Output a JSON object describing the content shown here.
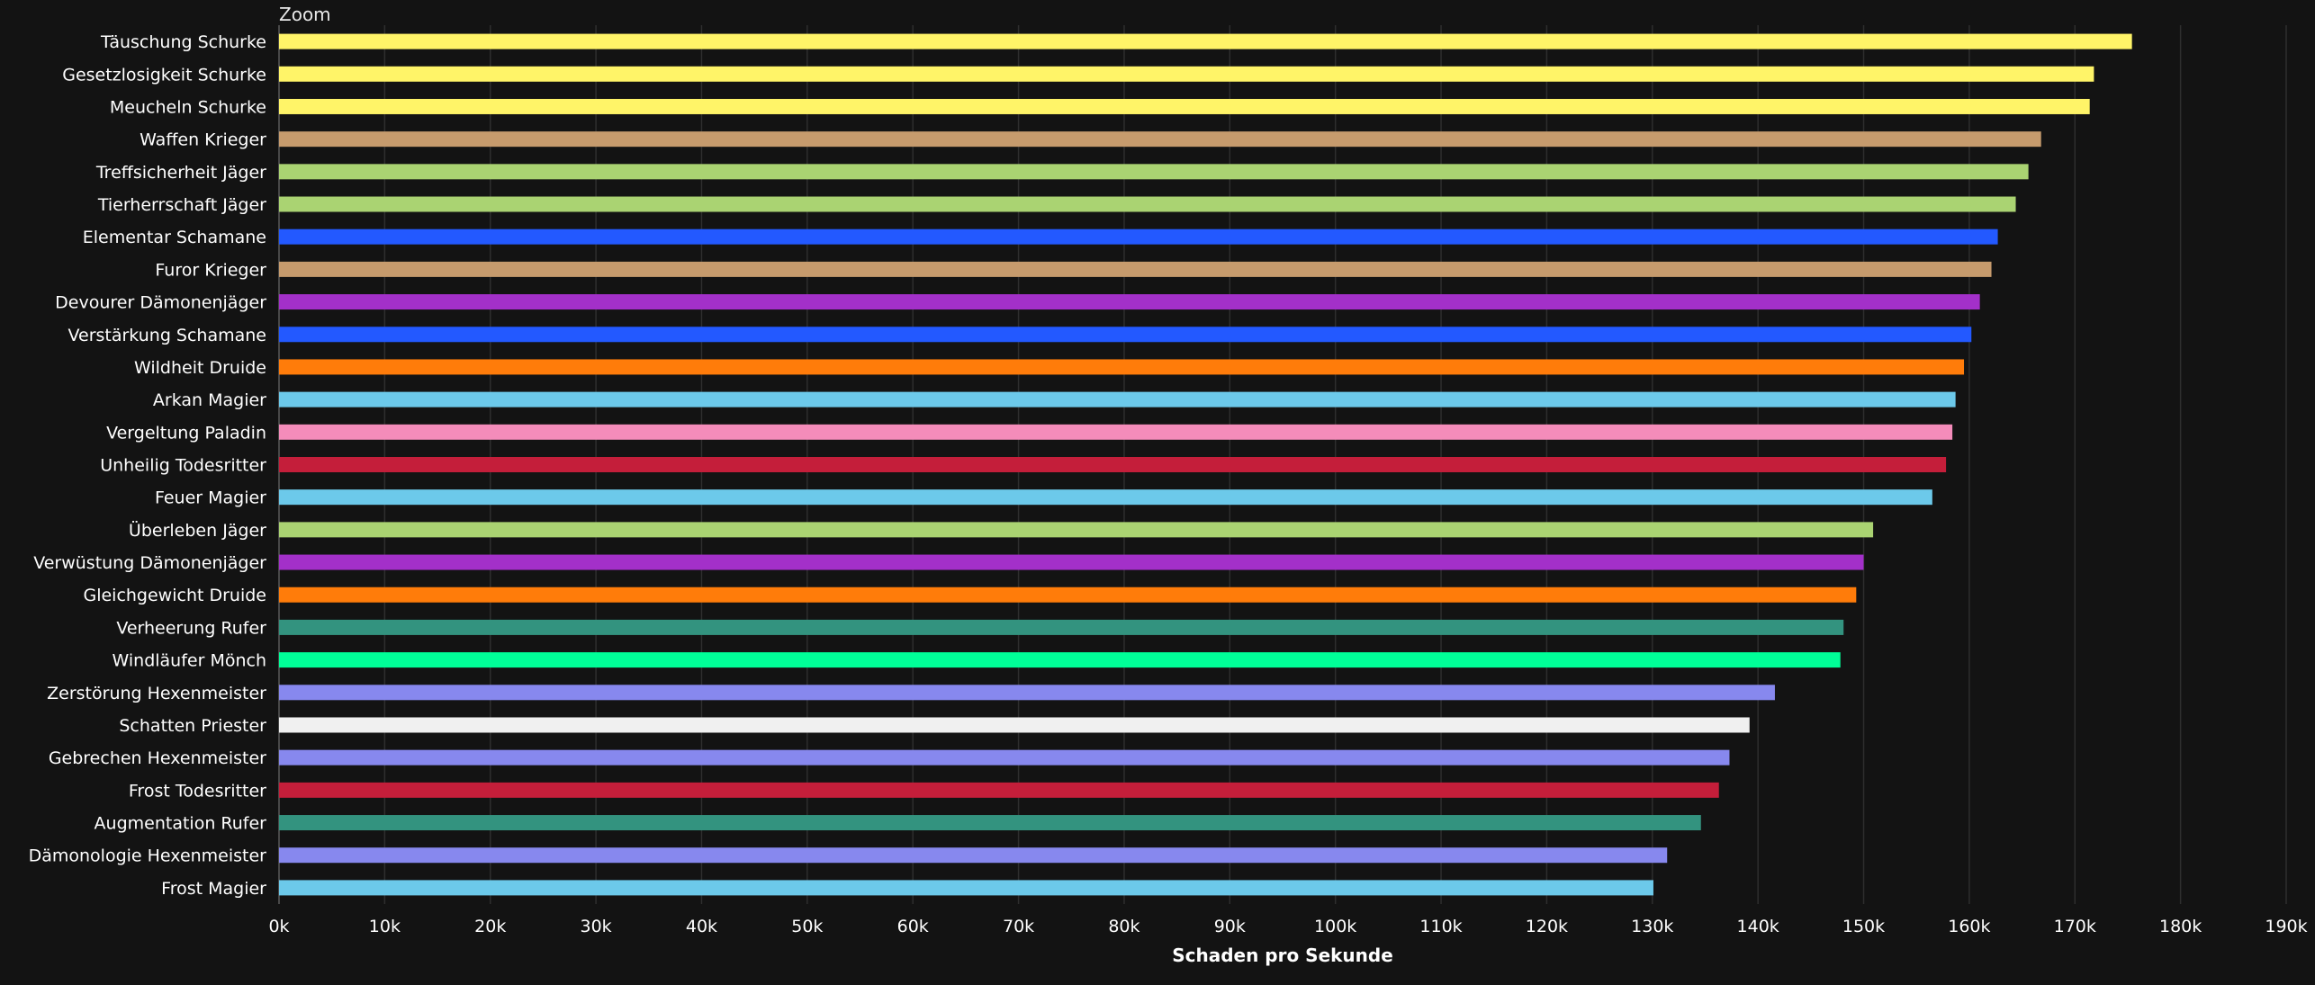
{
  "zoom_label": "Zoom",
  "colors": {
    "background": "#131313",
    "grid": "#2e2e2e",
    "text": "#ffffff"
  },
  "chart_data": {
    "type": "bar",
    "orientation": "horizontal",
    "xlabel": "Schaden pro Sekunde",
    "xlim": [
      0,
      190000
    ],
    "tick_step": 10000,
    "tick_labels": [
      "0k",
      "10k",
      "20k",
      "30k",
      "40k",
      "50k",
      "60k",
      "70k",
      "80k",
      "90k",
      "100k",
      "110k",
      "120k",
      "130k",
      "140k",
      "150k",
      "160k",
      "170k",
      "180k",
      "190k"
    ],
    "grid": true,
    "legend": "none",
    "categories": [
      "Täuschung Schurke",
      "Gesetzlosigkeit Schurke",
      "Meucheln Schurke",
      "Waffen Krieger",
      "Treffsicherheit Jäger",
      "Tierherrschaft Jäger",
      "Elementar Schamane",
      "Furor Krieger",
      "Devourer Dämonenjäger",
      "Verstärkung Schamane",
      "Wildheit Druide",
      "Arkan Magier",
      "Vergeltung Paladin",
      "Unheilig Todesritter",
      "Feuer Magier",
      "Überleben Jäger",
      "Verwüstung Dämonenjäger",
      "Gleichgewicht Druide",
      "Verheerung Rufer",
      "Windläufer Mönch",
      "Zerstörung Hexenmeister",
      "Schatten Priester",
      "Gebrechen Hexenmeister",
      "Frost Todesritter",
      "Augmentation Rufer",
      "Dämonologie Hexenmeister",
      "Frost Magier"
    ],
    "values": [
      175400,
      171800,
      171400,
      166800,
      165600,
      164400,
      162700,
      162100,
      161000,
      160200,
      159500,
      158700,
      158400,
      157800,
      156500,
      150900,
      150000,
      149300,
      148100,
      147800,
      141600,
      139200,
      137300,
      136300,
      134600,
      131400,
      130100
    ],
    "bar_colors": [
      "#FFF468",
      "#FFF468",
      "#FFF468",
      "#C69B6D",
      "#AAD372",
      "#AAD372",
      "#2359FF",
      "#C69B6D",
      "#A330C9",
      "#2359FF",
      "#FF7C0A",
      "#6CC9EA",
      "#F48CBA",
      "#C41E3A",
      "#6CC9EA",
      "#AAD372",
      "#A330C9",
      "#FF7C0A",
      "#33937F",
      "#00FF98",
      "#8788EE",
      "#F0F0F0",
      "#8788EE",
      "#C41E3A",
      "#33937F",
      "#8788EE",
      "#6CC9EA"
    ]
  }
}
